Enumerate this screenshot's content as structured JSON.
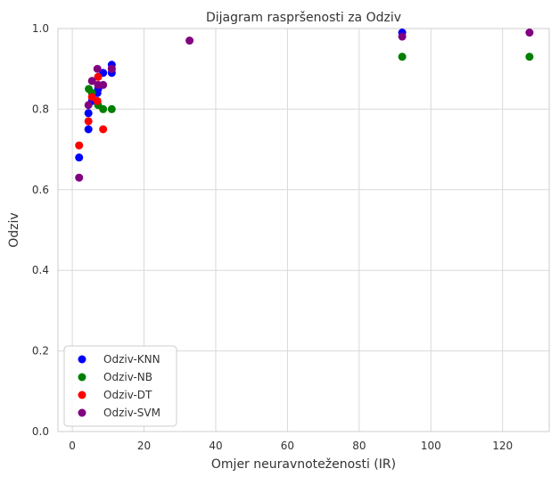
{
  "chart_data": {
    "type": "scatter",
    "title": "Dijagram raspršenosti za Odziv",
    "xlabel": "Omjer neuravnoteženosti (IR)",
    "ylabel": "Odziv",
    "xlim": [
      -4,
      133
    ],
    "ylim": [
      0,
      1.0
    ],
    "x_ticks": [
      0,
      20,
      40,
      60,
      80,
      100,
      120
    ],
    "y_ticks": [
      0.0,
      0.2,
      0.4,
      0.6,
      0.8,
      1.0
    ],
    "x_tick_labels": [
      "0",
      "20",
      "40",
      "60",
      "80",
      "100",
      "120"
    ],
    "y_tick_labels": [
      "0.0",
      "0.2",
      "0.4",
      "0.6",
      "0.8",
      "1.0"
    ],
    "grid": true,
    "legend_position": "bottom-left",
    "series": [
      {
        "name": "Odziv-KNN",
        "color": "#0000ff",
        "points": [
          {
            "x": 1.9,
            "y": 0.68
          },
          {
            "x": 4.5,
            "y": 0.75
          },
          {
            "x": 4.5,
            "y": 0.79
          },
          {
            "x": 5.5,
            "y": 0.82
          },
          {
            "x": 7.0,
            "y": 0.84
          },
          {
            "x": 7.2,
            "y": 0.85
          },
          {
            "x": 8.6,
            "y": 0.89
          },
          {
            "x": 11.0,
            "y": 0.89
          },
          {
            "x": 11.0,
            "y": 0.91
          },
          {
            "x": 92.0,
            "y": 0.99
          }
        ]
      },
      {
        "name": "Odziv-NB",
        "color": "#008000",
        "points": [
          {
            "x": 4.6,
            "y": 0.85
          },
          {
            "x": 5.5,
            "y": 0.84
          },
          {
            "x": 7.2,
            "y": 0.81
          },
          {
            "x": 8.6,
            "y": 0.8
          },
          {
            "x": 11.0,
            "y": 0.8
          },
          {
            "x": 92.0,
            "y": 0.93
          },
          {
            "x": 127.5,
            "y": 0.93
          }
        ]
      },
      {
        "name": "Odziv-DT",
        "color": "#ff0000",
        "points": [
          {
            "x": 1.9,
            "y": 0.71
          },
          {
            "x": 4.5,
            "y": 0.77
          },
          {
            "x": 5.5,
            "y": 0.83
          },
          {
            "x": 7.0,
            "y": 0.82
          },
          {
            "x": 7.2,
            "y": 0.88
          },
          {
            "x": 8.6,
            "y": 0.75
          },
          {
            "x": 11.0,
            "y": 0.9
          }
        ]
      },
      {
        "name": "Odziv-SVM",
        "color": "#800080",
        "points": [
          {
            "x": 1.9,
            "y": 0.63
          },
          {
            "x": 4.5,
            "y": 0.81
          },
          {
            "x": 5.5,
            "y": 0.87
          },
          {
            "x": 7.0,
            "y": 0.9
          },
          {
            "x": 7.2,
            "y": 0.86
          },
          {
            "x": 8.6,
            "y": 0.86
          },
          {
            "x": 11.0,
            "y": 0.9
          },
          {
            "x": 32.7,
            "y": 0.97
          },
          {
            "x": 92.0,
            "y": 0.98
          },
          {
            "x": 127.5,
            "y": 0.99
          }
        ]
      }
    ]
  }
}
